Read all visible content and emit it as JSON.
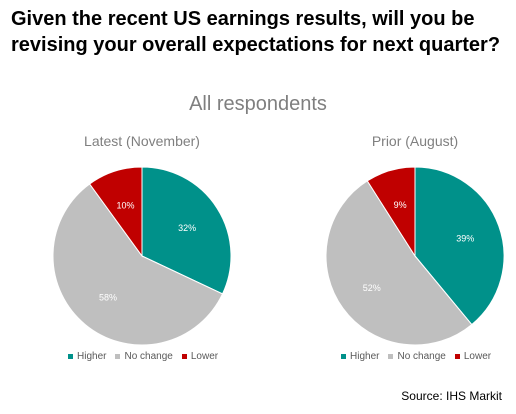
{
  "question": "Given the recent US earnings results, will you be revising your overall expectations for next quarter?",
  "subtitle": "All respondents",
  "source": "Source: IHS Markit",
  "colors": {
    "higher": "#00918a",
    "no_change": "#bfbfbf",
    "lower": "#c00000"
  },
  "chart_data": [
    {
      "type": "pie",
      "title": "Latest (November)",
      "categories": [
        "Higher",
        "No change",
        "Lower"
      ],
      "values": [
        32,
        58,
        10
      ],
      "labels": [
        "32%",
        "58%",
        "10%"
      ],
      "legend": [
        "Higher",
        "No change",
        "Lower"
      ]
    },
    {
      "type": "pie",
      "title": "Prior (August)",
      "categories": [
        "Higher",
        "No change",
        "Lower"
      ],
      "values": [
        39,
        52,
        9
      ],
      "labels": [
        "39%",
        "52%",
        "9%"
      ],
      "legend": [
        "Higher",
        "No change",
        "Lower"
      ]
    }
  ]
}
